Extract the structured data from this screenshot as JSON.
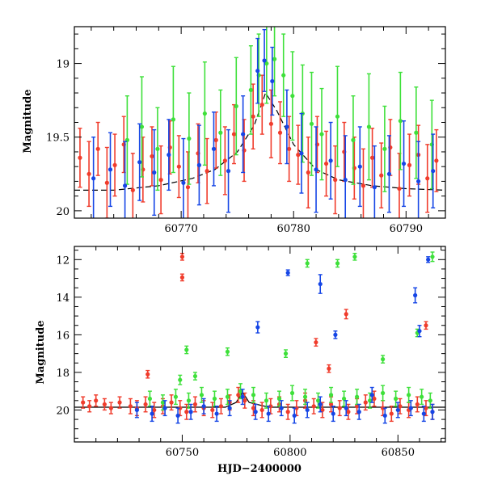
{
  "colors": {
    "red": "#f03c2c",
    "green": "#3ee03a",
    "blue": "#1646e6",
    "frame": "#000000",
    "model": "#000000"
  },
  "chart_data": [
    {
      "type": "scatter",
      "title": "",
      "xlabel": "",
      "ylabel": "Magnitude",
      "xlim": [
        60760.5,
        60793.5
      ],
      "ylim": [
        20.05,
        18.75
      ],
      "y_inverted": true,
      "xticks": [
        60770,
        60780,
        60790
      ],
      "yticks": [
        19,
        19.5,
        20
      ],
      "grid": false,
      "legend": "none",
      "model_curve": {
        "x": [
          60760.5,
          60764,
          60768,
          60771,
          60773,
          60775,
          60776.5,
          60777.5,
          60778.5,
          60780,
          60782,
          60784,
          60787,
          60790,
          60793.5
        ],
        "y": [
          19.86,
          19.86,
          19.83,
          19.78,
          19.72,
          19.6,
          19.42,
          19.2,
          19.32,
          19.55,
          19.72,
          19.79,
          19.83,
          19.85,
          19.86
        ]
      },
      "series": [
        {
          "color": "red",
          "x": [
            60761.0,
            60761.8,
            60762.6,
            60763.4,
            60764.1,
            60764.9,
            60765.7,
            60766.6,
            60767.4,
            60768.2,
            60769.0,
            60769.8,
            60770.6,
            60771.5,
            60772.3,
            60773.1,
            60773.9,
            60774.7,
            60775.6,
            60776.4,
            60777.2,
            60778.0,
            60778.8,
            60779.6,
            60780.4,
            60781.3,
            60782.1,
            60782.9,
            60783.7,
            60784.5,
            60785.4,
            60786.2,
            60787.0,
            60787.8,
            60788.6,
            60789.4,
            60790.3,
            60791.1,
            60791.9,
            60792.7
          ],
          "y": [
            19.64,
            19.75,
            19.58,
            19.81,
            19.69,
            19.55,
            19.86,
            19.72,
            19.63,
            19.79,
            19.57,
            19.7,
            19.84,
            19.61,
            19.73,
            19.52,
            19.66,
            19.48,
            19.59,
            19.36,
            19.28,
            19.41,
            19.47,
            19.58,
            19.62,
            19.74,
            19.55,
            19.68,
            19.79,
            19.6,
            19.71,
            19.83,
            19.64,
            19.76,
            19.57,
            19.85,
            19.69,
            19.62,
            19.78,
            19.66
          ],
          "err": [
            0.2,
            0.22,
            0.18,
            0.24,
            0.21,
            0.19,
            0.25,
            0.22,
            0.2,
            0.23,
            0.18,
            0.21,
            0.24,
            0.2,
            0.22,
            0.19,
            0.23,
            0.2,
            0.21,
            0.22,
            0.2,
            0.23,
            0.21,
            0.22,
            0.2,
            0.24,
            0.19,
            0.22,
            0.23,
            0.2,
            0.21,
            0.25,
            0.2,
            0.22,
            0.19,
            0.24,
            0.21,
            0.2,
            0.23,
            0.21
          ]
        },
        {
          "color": "green",
          "x": [
            60765.2,
            60766.5,
            60767.9,
            60769.3,
            60770.7,
            60772.1,
            60773.5,
            60774.9,
            60776.2,
            60776.9,
            60777.6,
            60778.3,
            60779.1,
            60779.9,
            60780.8,
            60781.6,
            60782.5,
            60783.9,
            60785.3,
            60786.7,
            60788.1,
            60789.5,
            60790.9,
            60792.3
          ],
          "y": [
            19.52,
            19.43,
            19.58,
            19.38,
            19.51,
            19.34,
            19.47,
            19.29,
            19.18,
            19.08,
            19.0,
            18.97,
            19.08,
            19.22,
            19.34,
            19.41,
            19.48,
            19.36,
            19.52,
            19.43,
            19.58,
            19.39,
            19.47,
            19.55
          ],
          "err": [
            0.3,
            0.34,
            0.28,
            0.36,
            0.31,
            0.35,
            0.29,
            0.33,
            0.3,
            0.28,
            0.27,
            0.25,
            0.28,
            0.3,
            0.33,
            0.35,
            0.31,
            0.34,
            0.3,
            0.36,
            0.29,
            0.33,
            0.31,
            0.3
          ]
        },
        {
          "color": "blue",
          "x": [
            60762.2,
            60763.7,
            60765.0,
            60766.3,
            60767.6,
            60768.9,
            60770.2,
            60771.6,
            60772.9,
            60774.2,
            60775.5,
            60776.8,
            60777.4,
            60778.1,
            60779.4,
            60780.7,
            60782.0,
            60783.3,
            60784.6,
            60785.9,
            60787.2,
            60788.5,
            60789.8,
            60791.1,
            60792.4
          ],
          "y": [
            19.78,
            19.72,
            19.83,
            19.67,
            19.74,
            19.62,
            19.81,
            19.69,
            19.58,
            19.73,
            19.48,
            19.05,
            18.98,
            19.12,
            19.43,
            19.61,
            19.72,
            19.66,
            19.79,
            19.7,
            19.84,
            19.75,
            19.68,
            19.8,
            19.73
          ],
          "err": [
            0.28,
            0.25,
            0.3,
            0.26,
            0.29,
            0.24,
            0.3,
            0.27,
            0.25,
            0.28,
            0.26,
            0.22,
            0.21,
            0.23,
            0.25,
            0.27,
            0.29,
            0.26,
            0.3,
            0.27,
            0.28,
            0.26,
            0.29,
            0.27,
            0.25
          ]
        }
      ]
    },
    {
      "type": "scatter",
      "title": "",
      "xlabel": "HJD−2400000",
      "ylabel": "Magnitude",
      "xlim": [
        60700,
        60872
      ],
      "ylim": [
        21.7,
        11.3
      ],
      "y_inverted": true,
      "xticks": [
        60750,
        60800,
        60850
      ],
      "yticks": [
        12,
        14,
        16,
        18,
        20
      ],
      "grid": false,
      "legend": "none",
      "model_curve": {
        "x": [
          60700,
          60770,
          60775,
          60778,
          60781,
          60790,
          60872
        ],
        "y": [
          19.85,
          19.85,
          19.6,
          19.05,
          19.6,
          19.85,
          19.85
        ]
      },
      "series": [
        {
          "color": "red",
          "x": [
            60704,
            60707,
            60710,
            60714,
            60717,
            60721,
            60726,
            60729,
            60733,
            60737,
            60741,
            60745,
            60749,
            60752,
            60756,
            60760,
            60764,
            60768,
            60772,
            60776,
            60779,
            60783,
            60787,
            60791,
            60795,
            60799,
            60803,
            60807,
            60811,
            60815,
            60819,
            60823,
            60827,
            60831,
            60835,
            60839,
            60843,
            60847,
            60851,
            60855,
            60859,
            60863,
            60866,
            60750,
            60750,
            60734,
            60812,
            60818,
            60826,
            60863
          ],
          "y": [
            19.6,
            19.8,
            19.5,
            19.7,
            19.9,
            19.6,
            19.8,
            19.9,
            19.7,
            20.0,
            19.8,
            19.6,
            19.9,
            20.1,
            19.7,
            19.9,
            20.0,
            19.8,
            19.6,
            19.2,
            19.5,
            19.9,
            20.0,
            19.8,
            19.7,
            20.1,
            19.9,
            19.5,
            19.8,
            20.0,
            19.7,
            19.9,
            20.1,
            19.8,
            19.6,
            19.4,
            19.9,
            20.2,
            19.8,
            20.0,
            19.7,
            19.9,
            20.1,
            11.85,
            12.95,
            18.1,
            16.4,
            17.8,
            14.9,
            15.5
          ],
          "err": [
            0.3,
            0.3,
            0.3,
            0.3,
            0.3,
            0.3,
            0.4,
            0.4,
            0.4,
            0.4,
            0.4,
            0.4,
            0.4,
            0.4,
            0.4,
            0.4,
            0.4,
            0.4,
            0.4,
            0.4,
            0.4,
            0.4,
            0.4,
            0.4,
            0.4,
            0.4,
            0.4,
            0.4,
            0.4,
            0.4,
            0.4,
            0.4,
            0.4,
            0.4,
            0.4,
            0.4,
            0.4,
            0.4,
            0.4,
            0.4,
            0.4,
            0.4,
            0.4,
            0.18,
            0.18,
            0.2,
            0.2,
            0.2,
            0.25,
            0.2
          ]
        },
        {
          "color": "green",
          "x": [
            60735,
            60741,
            60747,
            60753,
            60759,
            60765,
            60771,
            60777,
            60783,
            60789,
            60795,
            60801,
            60807,
            60813,
            60819,
            60825,
            60831,
            60837,
            60843,
            60849,
            60855,
            60861,
            60865,
            60808,
            60822,
            60830,
            60866,
            60752,
            60756,
            60749,
            60771,
            60798,
            60843,
            60859
          ],
          "y": [
            19.4,
            19.6,
            19.3,
            19.5,
            19.2,
            19.4,
            19.3,
            19.0,
            19.2,
            19.5,
            19.4,
            19.1,
            19.3,
            19.5,
            19.2,
            19.4,
            19.3,
            19.5,
            19.1,
            19.4,
            19.2,
            19.3,
            19.5,
            12.2,
            12.2,
            11.85,
            11.85,
            16.8,
            18.2,
            18.4,
            16.9,
            17.0,
            17.3,
            15.9
          ],
          "err": [
            0.4,
            0.4,
            0.4,
            0.4,
            0.4,
            0.4,
            0.4,
            0.4,
            0.4,
            0.4,
            0.4,
            0.4,
            0.4,
            0.4,
            0.4,
            0.4,
            0.4,
            0.4,
            0.4,
            0.4,
            0.4,
            0.4,
            0.4,
            0.2,
            0.2,
            0.18,
            0.25,
            0.2,
            0.2,
            0.25,
            0.2,
            0.2,
            0.2,
            0.2
          ]
        },
        {
          "color": "blue",
          "x": [
            60729,
            60736,
            60742,
            60748,
            60754,
            60760,
            60766,
            60772,
            60778,
            60784,
            60790,
            60796,
            60802,
            60808,
            60814,
            60820,
            60826,
            60832,
            60838,
            60844,
            60850,
            60856,
            60862,
            60866,
            60799,
            60814,
            60821,
            60785,
            60864,
            60858,
            60860
          ],
          "y": [
            20.0,
            20.2,
            19.9,
            20.3,
            20.1,
            19.8,
            20.2,
            19.9,
            19.3,
            20.1,
            20.2,
            19.9,
            20.3,
            20.0,
            19.7,
            20.2,
            19.9,
            20.1,
            19.2,
            20.3,
            20.0,
            19.9,
            20.2,
            20.1,
            12.7,
            13.3,
            16.0,
            15.6,
            12.0,
            13.9,
            15.8
          ],
          "err": [
            0.4,
            0.4,
            0.4,
            0.4,
            0.4,
            0.4,
            0.4,
            0.4,
            0.4,
            0.4,
            0.4,
            0.4,
            0.4,
            0.4,
            0.4,
            0.4,
            0.4,
            0.4,
            0.4,
            0.4,
            0.4,
            0.4,
            0.4,
            0.4,
            0.15,
            0.5,
            0.2,
            0.3,
            0.15,
            0.4,
            0.3
          ]
        }
      ]
    }
  ]
}
